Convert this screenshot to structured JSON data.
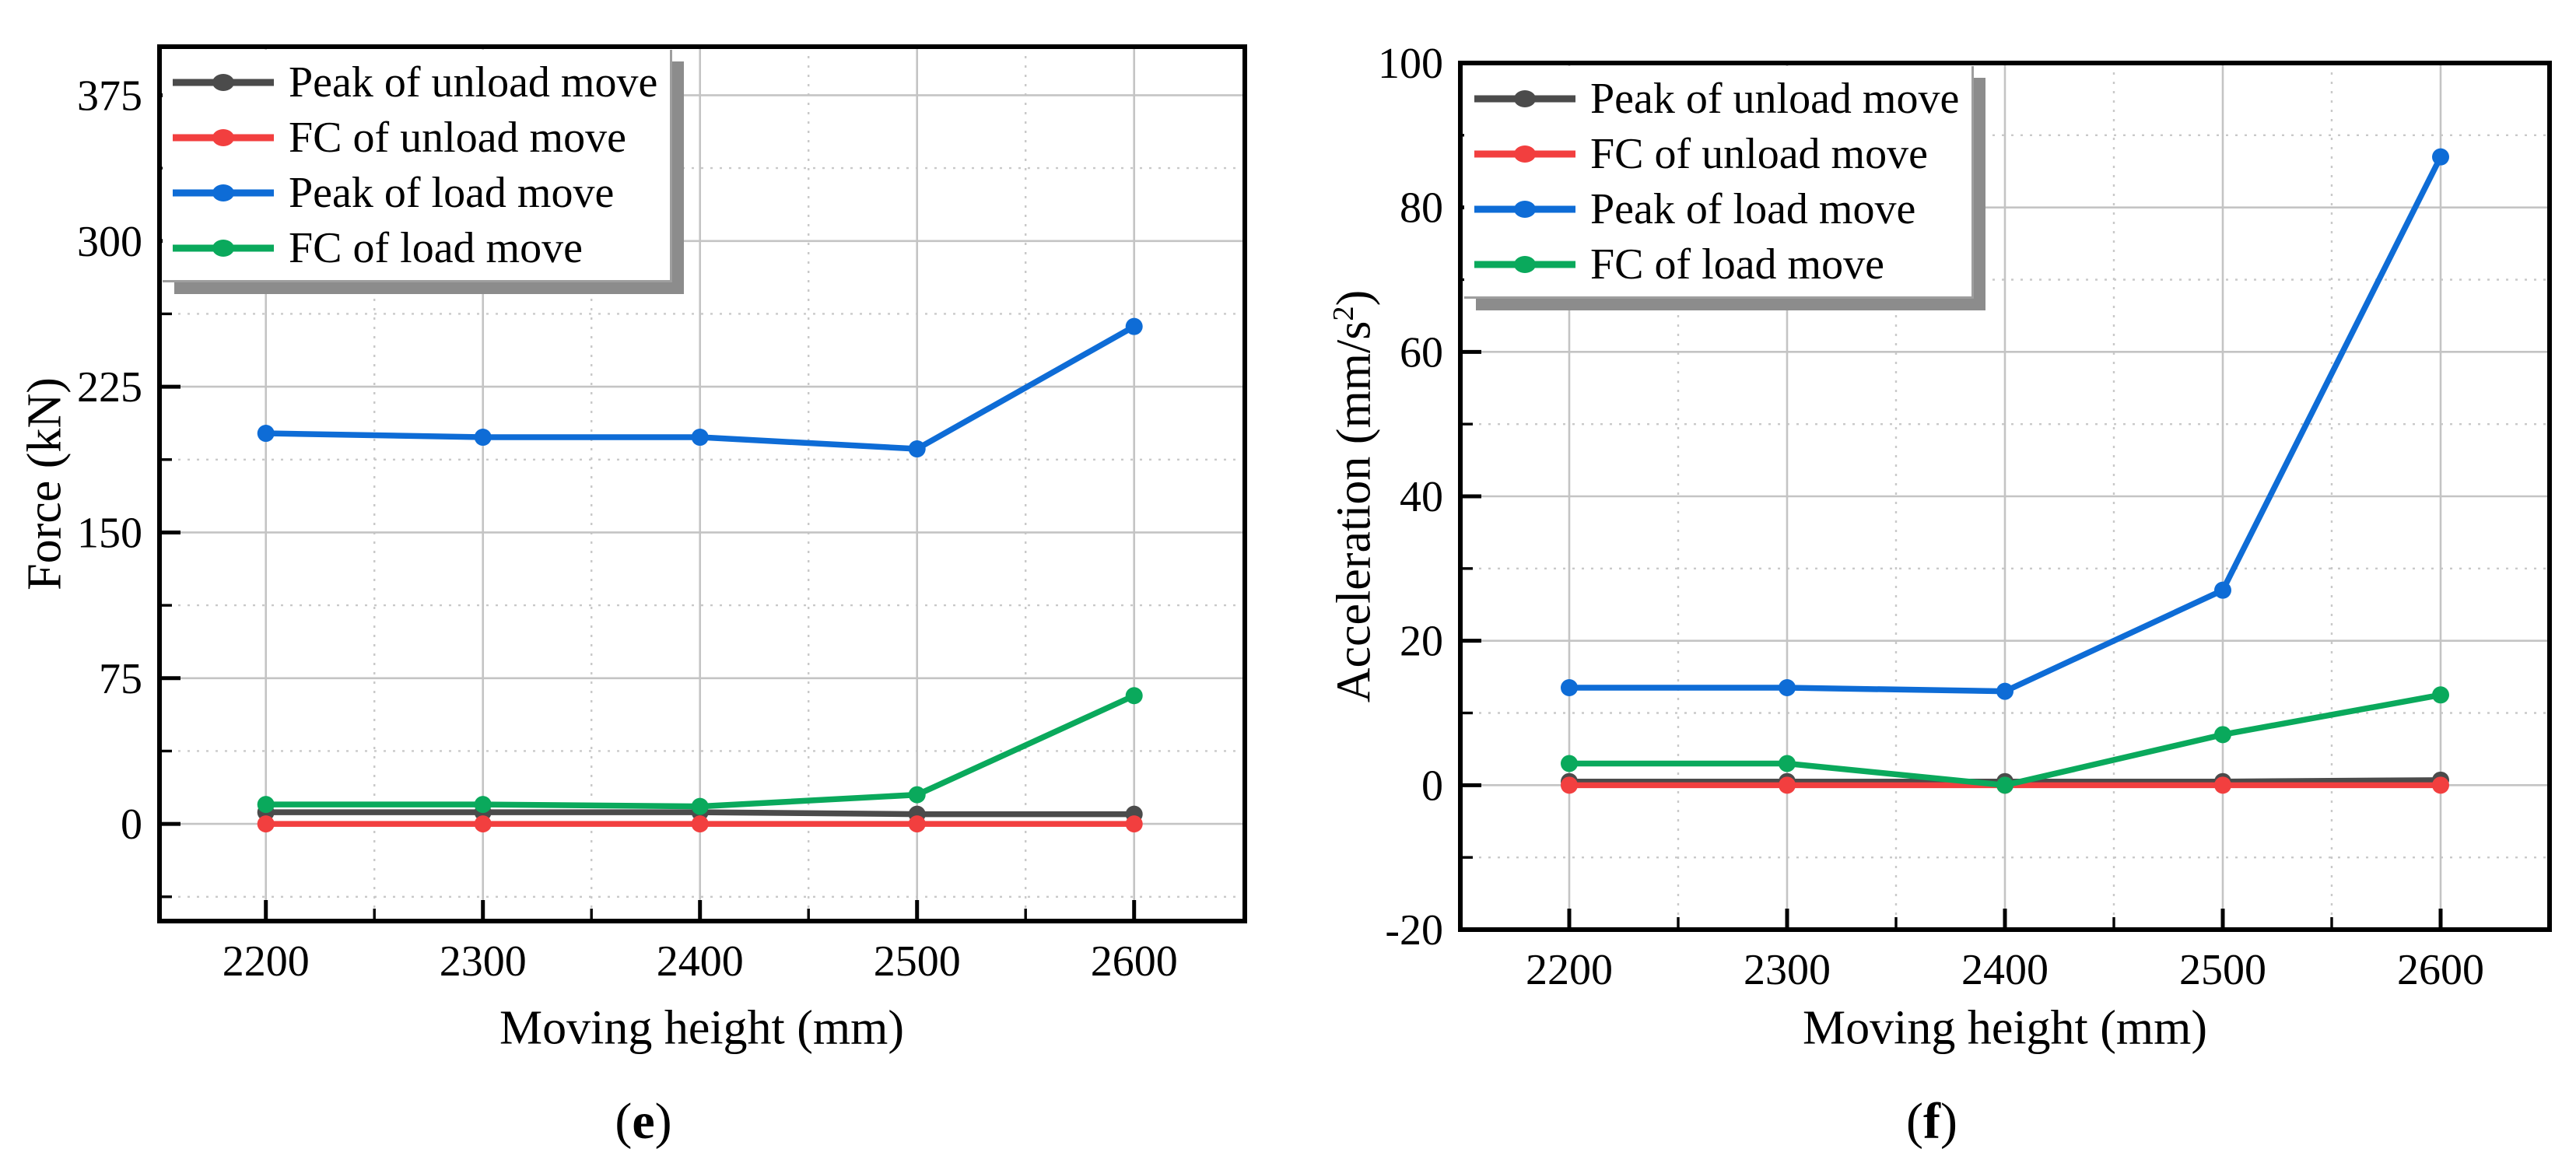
{
  "chart_data": [
    {
      "id": "e",
      "type": "line",
      "title": "",
      "caption": {
        "open": "(",
        "letter": "e",
        "close": ")"
      },
      "xlabel": "Moving height (mm)",
      "ylabel_prefix": "Force (kN)",
      "ylabel_sup": "",
      "ylabel_suffix": "",
      "x": [
        2200,
        2300,
        2400,
        2500,
        2600
      ],
      "series": [
        {
          "name": "Peak of unload move",
          "color": "#4b4b4b",
          "values": [
            6,
            6,
            6,
            5,
            5
          ]
        },
        {
          "name": "FC of unload move",
          "color": "#f23f3f",
          "values": [
            0,
            0,
            0,
            0,
            0
          ]
        },
        {
          "name": "Peak of load move",
          "color": "#0e6cd6",
          "values": [
            201,
            199,
            199,
            193,
            256
          ]
        },
        {
          "name": "FC of load move",
          "color": "#0aa95c",
          "values": [
            10,
            10,
            9,
            15,
            66
          ]
        }
      ],
      "xlim": [
        2151,
        2651
      ],
      "ylim": [
        -50,
        400
      ],
      "xticks": [
        2200,
        2300,
        2400,
        2500,
        2600
      ],
      "xminor": [
        2250,
        2350,
        2450,
        2550
      ],
      "yticks": [
        0,
        75,
        150,
        225,
        300,
        375
      ],
      "yminor": [
        -37.5,
        37.5,
        112.5,
        187.5,
        262.5,
        337.5
      ],
      "grid": true,
      "legend_position": "top-left"
    },
    {
      "id": "f",
      "type": "line",
      "title": "",
      "caption": {
        "open": "(",
        "letter": "f",
        "close": ")"
      },
      "xlabel": "Moving height (mm)",
      "ylabel_prefix": "Acceleration (mm/s",
      "ylabel_sup": "2",
      "ylabel_suffix": ")",
      "x": [
        2200,
        2300,
        2400,
        2500,
        2600
      ],
      "series": [
        {
          "name": "Peak of unload move",
          "color": "#4b4b4b",
          "values": [
            0.5,
            0.5,
            0.5,
            0.5,
            0.7
          ]
        },
        {
          "name": "FC of unload move",
          "color": "#f23f3f",
          "values": [
            0,
            0,
            0,
            0,
            0
          ]
        },
        {
          "name": "Peak of load move",
          "color": "#0e6cd6",
          "values": [
            13.5,
            13.5,
            13,
            27,
            87
          ]
        },
        {
          "name": "FC of load move",
          "color": "#0aa95c",
          "values": [
            3,
            3,
            0,
            7,
            12.5
          ]
        }
      ],
      "xlim": [
        2150,
        2650
      ],
      "ylim": [
        -20,
        100
      ],
      "xticks": [
        2200,
        2300,
        2400,
        2500,
        2600
      ],
      "xminor": [
        2250,
        2350,
        2450,
        2550
      ],
      "yticks": [
        -20,
        0,
        20,
        40,
        60,
        80,
        100
      ],
      "yminor": [
        -10,
        10,
        30,
        50,
        70,
        90
      ],
      "grid": true,
      "legend_position": "top-left"
    }
  ],
  "style": {
    "grid_major_color": "#c4c4c4",
    "grid_minor_color": "#c9c9c9",
    "axis_color": "#000000",
    "legend_shadow_color": "#8c8c8c"
  }
}
